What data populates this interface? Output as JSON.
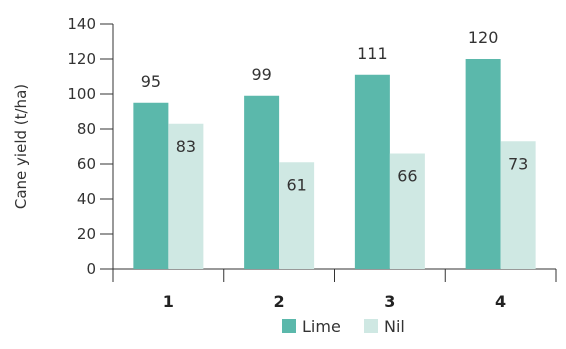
{
  "chart_data": {
    "type": "bar",
    "title": "",
    "xlabel": "",
    "ylabel": "Cane yield (t/ha)",
    "categories": [
      "1",
      "2",
      "3",
      "4"
    ],
    "series": [
      {
        "name": "Lime",
        "values": [
          95,
          99,
          111,
          120
        ],
        "color": "#5bb8ab"
      },
      {
        "name": "Nil",
        "values": [
          83,
          61,
          66,
          73
        ],
        "color": "#cfe8e3"
      }
    ],
    "data_labels": [
      [
        "95",
        "99",
        "111",
        "120"
      ],
      [
        "83",
        "61",
        "66",
        "73"
      ]
    ],
    "ylim": [
      0,
      140
    ],
    "yticks": [
      0,
      20,
      40,
      60,
      80,
      100,
      120,
      140
    ],
    "grid": false,
    "legend": "bottom-center"
  }
}
